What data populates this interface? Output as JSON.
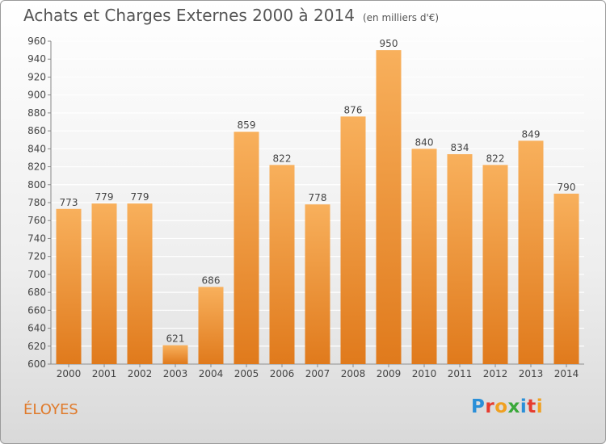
{
  "header": {
    "title": "Achats et Charges Externes 2000 à 2014",
    "unit": "(en milliers d'€)"
  },
  "footer": {
    "place": "ÉLOYES",
    "brand": "Proxiti"
  },
  "colors": {
    "bar_light": "#f8b05c",
    "bar_dark": "#e07a1c",
    "place": "#e07a2a"
  },
  "chart_data": {
    "type": "bar",
    "title": "Achats et Charges Externes 2000 à 2014",
    "subtitle": "(en milliers d'€)",
    "categories": [
      "2000",
      "2001",
      "2002",
      "2003",
      "2004",
      "2005",
      "2006",
      "2007",
      "2008",
      "2009",
      "2010",
      "2011",
      "2012",
      "2013",
      "2014"
    ],
    "values": [
      773,
      779,
      779,
      621,
      686,
      859,
      822,
      778,
      876,
      950,
      840,
      834,
      822,
      849,
      790
    ],
    "ylim": [
      600,
      960
    ],
    "yticks": [
      600,
      620,
      640,
      660,
      680,
      700,
      720,
      740,
      760,
      780,
      800,
      820,
      840,
      860,
      880,
      900,
      920,
      940,
      960
    ],
    "grid": true,
    "xlabel": "",
    "ylabel": ""
  }
}
